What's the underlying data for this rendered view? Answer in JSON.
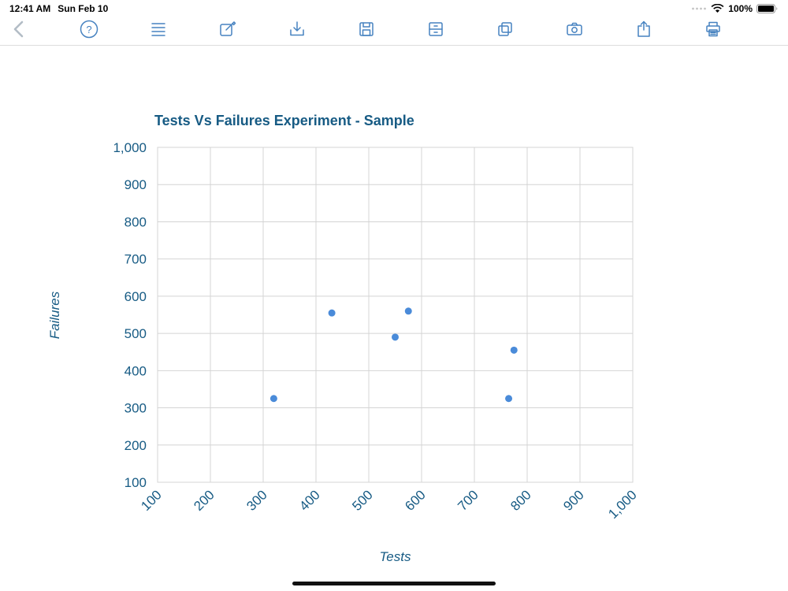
{
  "status_bar": {
    "time": "12:41 AM",
    "date": "Sun Feb 10",
    "battery_percent": "100%",
    "icons": [
      "cellular-signal-icon",
      "wifi-icon",
      "battery-icon"
    ]
  },
  "toolbar": {
    "buttons": [
      {
        "name": "back",
        "icon": "chevron-left-icon"
      },
      {
        "name": "help",
        "icon": "question-mark-circle-icon"
      },
      {
        "name": "list",
        "icon": "list-icon"
      },
      {
        "name": "compose",
        "icon": "compose-icon"
      },
      {
        "name": "import",
        "icon": "download-tray-icon"
      },
      {
        "name": "save",
        "icon": "floppy-disk-icon"
      },
      {
        "name": "archive",
        "icon": "archive-drawers-icon"
      },
      {
        "name": "windows",
        "icon": "overlapping-windows-icon"
      },
      {
        "name": "camera",
        "icon": "camera-icon"
      },
      {
        "name": "share",
        "icon": "share-icon"
      },
      {
        "name": "print",
        "icon": "printer-icon"
      }
    ],
    "icon_color": "#4682c0",
    "back_icon_color": "#b3bdc6"
  },
  "chart_data": {
    "type": "scatter",
    "title": "Tests Vs Failures Experiment - Sample",
    "xlabel": "Tests",
    "ylabel": "Failures",
    "xlim": [
      100,
      1000
    ],
    "ylim": [
      100,
      1000
    ],
    "x_ticks": [
      "100",
      "200",
      "300",
      "400",
      "500",
      "600",
      "700",
      "800",
      "900",
      "1,000"
    ],
    "y_ticks": [
      "1,000",
      "900",
      "800",
      "700",
      "600",
      "500",
      "400",
      "300",
      "200",
      "100"
    ],
    "points": [
      {
        "x": 320,
        "y": 325
      },
      {
        "x": 430,
        "y": 555
      },
      {
        "x": 550,
        "y": 490
      },
      {
        "x": 575,
        "y": 560
      },
      {
        "x": 765,
        "y": 325
      },
      {
        "x": 775,
        "y": 455
      }
    ],
    "grid": true,
    "legend": false,
    "point_color": "#4a8bd9",
    "grid_color": "#d4d4d4",
    "accent_color": "#175b84"
  }
}
